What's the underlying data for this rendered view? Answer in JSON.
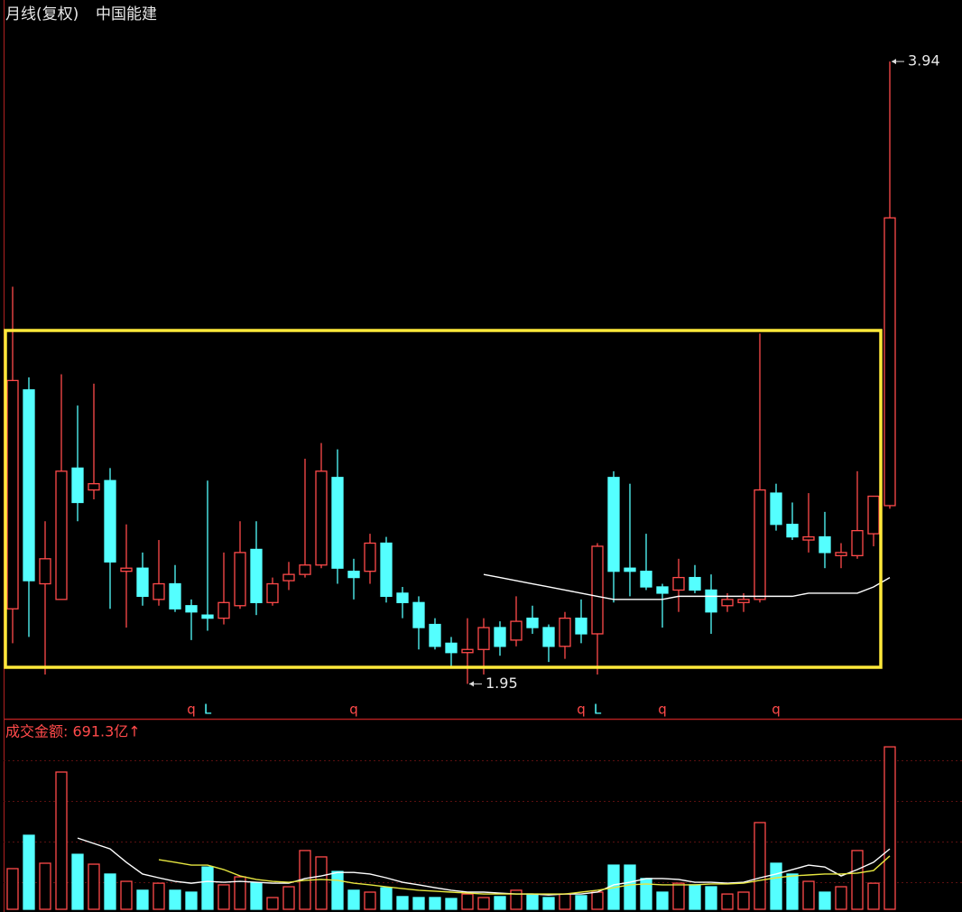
{
  "chart_data": [
    {
      "type": "candlestick",
      "title": "月线(复权)",
      "subtitle": "中国能建",
      "open": [
        2.19,
        2.89,
        2.27,
        2.22,
        2.64,
        2.57,
        2.6,
        2.31,
        2.32,
        2.22,
        2.27,
        2.2,
        2.17,
        2.16,
        2.2,
        2.38,
        2.21,
        2.28,
        2.3,
        2.33,
        2.61,
        2.31,
        2.31,
        2.4,
        2.24,
        2.21,
        2.14,
        2.08,
        2.05,
        2.06,
        2.13,
        2.09,
        2.16,
        2.13,
        2.07,
        2.16,
        2.11,
        2.61,
        2.32,
        2.31,
        2.26,
        2.25,
        2.29,
        2.25,
        2.2,
        2.21,
        2.22,
        2.56,
        2.46,
        2.41,
        2.42,
        2.36,
        2.36,
        2.43,
        2.52
      ],
      "high": [
        3.22,
        2.93,
        2.47,
        2.94,
        2.84,
        2.91,
        2.64,
        2.46,
        2.37,
        2.41,
        2.33,
        2.22,
        2.6,
        2.37,
        2.47,
        2.47,
        2.29,
        2.34,
        2.67,
        2.72,
        2.7,
        2.35,
        2.43,
        2.42,
        2.26,
        2.23,
        2.16,
        2.1,
        2.16,
        2.16,
        2.15,
        2.23,
        2.2,
        2.14,
        2.18,
        2.22,
        2.4,
        2.63,
        2.59,
        2.43,
        2.27,
        2.35,
        2.33,
        2.3,
        2.24,
        2.24,
        3.07,
        2.59,
        2.53,
        2.56,
        2.5,
        2.4,
        2.63,
        2.55,
        3.94
      ],
      "low": [
        2.08,
        2.1,
        1.98,
        2.22,
        2.47,
        2.54,
        2.19,
        2.13,
        2.2,
        2.2,
        2.18,
        2.09,
        2.12,
        2.14,
        2.19,
        2.17,
        2.2,
        2.25,
        2.29,
        2.32,
        2.27,
        2.22,
        2.27,
        2.21,
        2.16,
        2.06,
        2.06,
        2.0,
        1.95,
        1.98,
        2.04,
        2.07,
        2.11,
        2.02,
        2.03,
        2.08,
        1.98,
        2.21,
        2.23,
        2.25,
        2.13,
        2.18,
        2.24,
        2.11,
        2.18,
        2.18,
        2.21,
        2.44,
        2.41,
        2.37,
        2.32,
        2.32,
        2.35,
        2.39,
        2.51
      ],
      "close": [
        2.92,
        2.28,
        2.35,
        2.63,
        2.53,
        2.59,
        2.34,
        2.32,
        2.23,
        2.27,
        2.19,
        2.18,
        2.16,
        2.21,
        2.37,
        2.21,
        2.27,
        2.3,
        2.33,
        2.63,
        2.32,
        2.29,
        2.4,
        2.23,
        2.21,
        2.13,
        2.07,
        2.05,
        2.06,
        2.13,
        2.07,
        2.15,
        2.13,
        2.07,
        2.16,
        2.11,
        2.39,
        2.31,
        2.31,
        2.26,
        2.24,
        2.29,
        2.25,
        2.18,
        2.22,
        2.22,
        2.57,
        2.46,
        2.42,
        2.42,
        2.37,
        2.37,
        2.44,
        2.55,
        3.44
      ],
      "up_color": "#ff4a4a",
      "down_color": "#54ffff",
      "ylim": [
        1.85,
        4.05
      ],
      "lines": [
        {
          "color": "#ffffff",
          "values": [
            null,
            null,
            null,
            null,
            null,
            null,
            null,
            null,
            null,
            null,
            null,
            null,
            null,
            null,
            null,
            null,
            null,
            null,
            null,
            null,
            null,
            null,
            null,
            null,
            null,
            null,
            null,
            null,
            null,
            2.3,
            2.29,
            2.28,
            2.27,
            2.26,
            2.25,
            2.24,
            2.23,
            2.22,
            2.22,
            2.22,
            2.22,
            2.23,
            2.23,
            2.23,
            2.23,
            2.23,
            2.23,
            2.23,
            2.23,
            2.24,
            2.24,
            2.24,
            2.24,
            2.26,
            2.29
          ]
        }
      ],
      "annotations": [
        {
          "index": 54,
          "value": 3.94
        },
        {
          "index": 28,
          "value": 1.95
        }
      ],
      "markers": [
        {
          "index": 11,
          "label": "q",
          "color": "#ff4a4a"
        },
        {
          "index": 12,
          "label": "L",
          "color": "#54ffff"
        },
        {
          "index": 21,
          "label": "q",
          "color": "#ff4a4a"
        },
        {
          "index": 35,
          "label": "q",
          "color": "#ff4a4a"
        },
        {
          "index": 36,
          "label": "L",
          "color": "#54ffff"
        },
        {
          "index": 40,
          "label": "q",
          "color": "#ff4a4a"
        },
        {
          "index": 47,
          "label": "q",
          "color": "#ff4a4a"
        }
      ]
    },
    {
      "type": "bar",
      "title": "成交金额: 691.3亿↑",
      "values": [
        173,
        315,
        196,
        584,
        234,
        192,
        150,
        119,
        81,
        111,
        81,
        73,
        180,
        104,
        138,
        111,
        50,
        96,
        250,
        223,
        161,
        81,
        73,
        92,
        54,
        50,
        50,
        46,
        65,
        50,
        54,
        81,
        65,
        50,
        65,
        58,
        73,
        188,
        188,
        131,
        73,
        111,
        104,
        96,
        65,
        73,
        369,
        196,
        150,
        119,
        73,
        96,
        250,
        111,
        691.3
      ],
      "ylim": [
        0,
        780
      ],
      "lines": [
        {
          "color": "#ffffff",
          "values": [
            null,
            null,
            null,
            null,
            303,
            280,
            257,
            200,
            150,
            134,
            119,
            111,
            119,
            115,
            119,
            115,
            111,
            111,
            131,
            142,
            157,
            157,
            150,
            134,
            115,
            104,
            92,
            81,
            73,
            73,
            69,
            65,
            65,
            61,
            65,
            65,
            73,
            104,
            115,
            131,
            131,
            127,
            115,
            115,
            111,
            115,
            134,
            150,
            169,
            188,
            180,
            142,
            169,
            200,
            257
          ]
        },
        {
          "color": "#e6e640",
          "values": [
            null,
            null,
            null,
            null,
            null,
            null,
            null,
            null,
            null,
            211,
            200,
            188,
            188,
            169,
            142,
            127,
            119,
            115,
            123,
            127,
            123,
            111,
            104,
            96,
            88,
            81,
            77,
            73,
            69,
            65,
            65,
            65,
            65,
            65,
            65,
            73,
            81,
            92,
            104,
            108,
            104,
            104,
            104,
            108,
            108,
            111,
            123,
            134,
            142,
            146,
            150,
            150,
            154,
            165,
            227
          ]
        }
      ]
    }
  ]
}
